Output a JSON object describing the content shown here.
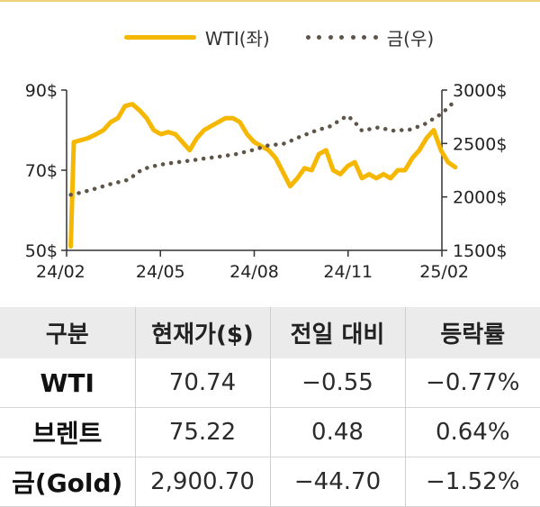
{
  "legend": {
    "wti_label": "WTI(좌)",
    "gold_label": "금(우)"
  },
  "colors": {
    "wti": "#f5b700",
    "gold": "#5e5448",
    "axis": "#333333",
    "header_bg": "#ebebeb"
  },
  "chart_data": {
    "type": "line",
    "x_ticks": [
      "24/02",
      "24/05",
      "24/08",
      "24/11",
      "25/02"
    ],
    "left_axis": {
      "ticks": [
        "90$",
        "70$",
        "50$"
      ],
      "ylim": [
        50,
        90
      ]
    },
    "right_axis": {
      "ticks": [
        "3000$",
        "2500$",
        "2000$",
        "1500$"
      ],
      "ylim": [
        1500,
        3000
      ]
    },
    "grid": false,
    "legend_position": "top-center",
    "series": [
      {
        "name": "WTI(좌)",
        "axis": "left",
        "style": "solid",
        "x": [
          "24/02/05",
          "24/02/08",
          "24/02/15",
          "24/02/22",
          "24/03/01",
          "24/03/08",
          "24/03/15",
          "24/03/22",
          "24/03/29",
          "24/04/05",
          "24/04/12",
          "24/04/19",
          "24/04/26",
          "24/05/03",
          "24/05/10",
          "24/05/17",
          "24/05/24",
          "24/05/31",
          "24/06/07",
          "24/06/14",
          "24/06/21",
          "24/06/28",
          "24/07/05",
          "24/07/12",
          "24/07/19",
          "24/07/26",
          "24/08/02",
          "24/08/09",
          "24/08/16",
          "24/08/23",
          "24/08/30",
          "24/09/06",
          "24/09/13",
          "24/09/20",
          "24/09/27",
          "24/10/04",
          "24/10/11",
          "24/10/18",
          "24/10/25",
          "24/11/01",
          "24/11/08",
          "24/11/15",
          "24/11/22",
          "24/11/29",
          "24/12/06",
          "24/12/13",
          "24/12/20",
          "24/12/27",
          "25/01/03",
          "25/01/10",
          "25/01/17",
          "25/01/24",
          "25/01/31",
          "25/02/07",
          "25/02/14"
        ],
        "values": [
          51,
          77,
          77.5,
          78,
          79,
          80,
          82,
          83,
          86,
          86.5,
          85,
          83,
          80,
          79,
          79.5,
          79,
          77,
          75,
          78,
          80,
          81,
          82,
          83,
          83,
          82,
          79,
          77,
          76,
          75,
          73,
          69.5,
          66,
          68,
          70.5,
          70,
          74,
          75,
          70,
          69,
          71,
          72,
          68,
          69,
          68,
          69,
          68,
          70,
          70,
          73,
          75,
          78,
          80,
          75,
          72,
          70.74
        ]
      },
      {
        "name": "금(우)",
        "axis": "right",
        "style": "dotted",
        "x": [
          "24/02/05",
          "24/02/15",
          "24/03/01",
          "24/03/15",
          "24/04/01",
          "24/04/15",
          "24/05/01",
          "24/05/15",
          "24/06/01",
          "24/06/15",
          "24/07/01",
          "24/07/15",
          "24/08/01",
          "24/08/15",
          "24/09/01",
          "24/09/15",
          "24/10/01",
          "24/10/15",
          "24/10/25",
          "24/11/01",
          "24/11/08",
          "24/11/15",
          "24/12/01",
          "24/12/15",
          "25/01/01",
          "25/01/15",
          "25/02/01",
          "25/02/14"
        ],
        "values": [
          2020,
          2040,
          2080,
          2120,
          2160,
          2260,
          2300,
          2320,
          2340,
          2360,
          2380,
          2400,
          2440,
          2480,
          2500,
          2560,
          2620,
          2660,
          2720,
          2760,
          2700,
          2620,
          2650,
          2620,
          2630,
          2680,
          2780,
          2900.7
        ]
      }
    ]
  },
  "table": {
    "headers": [
      "구분",
      "현재가($)",
      "전일 대비",
      "등락률"
    ],
    "rows": [
      [
        "WTI",
        "70.74",
        "−0.55",
        "−0.77%"
      ],
      [
        "브렌트",
        "75.22",
        "0.48",
        "0.64%"
      ],
      [
        "금(Gold)",
        "2,900.70",
        "−44.70",
        "−1.52%"
      ]
    ]
  }
}
